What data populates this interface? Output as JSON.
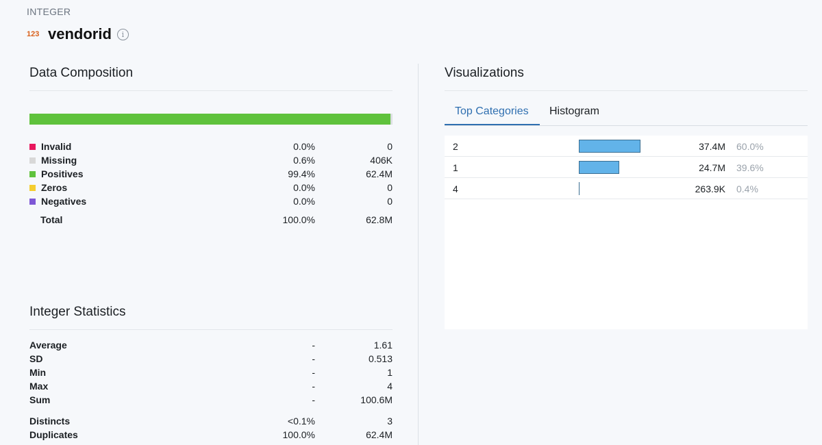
{
  "header": {
    "type_label": "INTEGER",
    "type_icon": "123",
    "column_name": "vendorid",
    "info_icon": "i"
  },
  "composition": {
    "title": "Data Composition",
    "bar": {
      "positives_fraction": 0.994,
      "missing_fraction": 0.006
    },
    "rows": [
      {
        "label": "Invalid",
        "pct": "0.0%",
        "count": "0",
        "color": "#e8175d"
      },
      {
        "label": "Missing",
        "pct": "0.6%",
        "count": "406K",
        "color": "#d8d8d8"
      },
      {
        "label": "Positives",
        "pct": "99.4%",
        "count": "62.4M",
        "color": "#5fc23c"
      },
      {
        "label": "Zeros",
        "pct": "0.0%",
        "count": "0",
        "color": "#f5cd2f"
      },
      {
        "label": "Negatives",
        "pct": "0.0%",
        "count": "0",
        "color": "#7e57d6"
      }
    ],
    "total": {
      "label": "Total",
      "pct": "100.0%",
      "count": "62.8M"
    }
  },
  "integer_stats": {
    "title": "Integer Statistics",
    "rows": [
      {
        "label": "Average",
        "pct": "-",
        "value": "1.61"
      },
      {
        "label": "SD",
        "pct": "-",
        "value": "0.513"
      },
      {
        "label": "Min",
        "pct": "-",
        "value": "1"
      },
      {
        "label": "Max",
        "pct": "-",
        "value": "4"
      },
      {
        "label": "Sum",
        "pct": "-",
        "value": "100.6M"
      }
    ],
    "rows2": [
      {
        "label": "Distincts",
        "pct": "<0.1%",
        "value": "3"
      },
      {
        "label": "Duplicates",
        "pct": "100.0%",
        "value": "62.4M"
      }
    ]
  },
  "visualizations": {
    "title": "Visualizations",
    "tabs": [
      {
        "label": "Top Categories",
        "active": true
      },
      {
        "label": "Histogram",
        "active": false
      }
    ],
    "top_categories": [
      {
        "category": "2",
        "value": "37.4M",
        "pct": "60.0%",
        "share": 0.6
      },
      {
        "category": "1",
        "value": "24.7M",
        "pct": "39.6%",
        "share": 0.396
      },
      {
        "category": "4",
        "value": "263.9K",
        "pct": "0.4%",
        "share": 0.004
      }
    ]
  }
}
